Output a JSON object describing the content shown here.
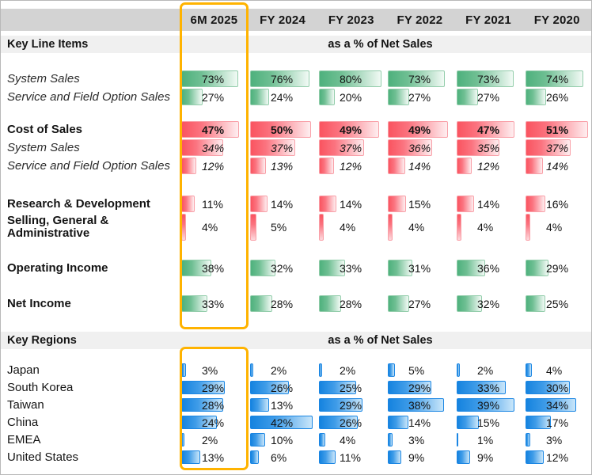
{
  "chart_data": {
    "type": "bar",
    "title": "Key Line Items and Key Regions as a % of Net Sales",
    "columns": [
      "6M 2025",
      "FY 2024",
      "FY 2023",
      "FY 2022",
      "FY 2021",
      "FY 2020"
    ],
    "highlighted_column": "6M 2025",
    "unit": "%",
    "scales": {
      "green": 80,
      "red": 51,
      "blue": 42
    },
    "sections": [
      {
        "title": "Key Line Items",
        "subtitle": "as a % of Net Sales",
        "rows": [
          {
            "label": "System Sales",
            "values": [
              73,
              76,
              80,
              73,
              73,
              74
            ],
            "color": "green",
            "label_style": "italic",
            "value_style": "normal"
          },
          {
            "label": "Service and Field Option Sales",
            "values": [
              27,
              24,
              20,
              27,
              27,
              26
            ],
            "color": "green",
            "label_style": "italic",
            "value_style": "normal"
          },
          {
            "label": "Cost of Sales",
            "values": [
              47,
              50,
              49,
              49,
              47,
              51
            ],
            "color": "red",
            "label_style": "bold",
            "value_style": "bold"
          },
          {
            "label": "System Sales",
            "values": [
              34,
              37,
              37,
              36,
              35,
              37
            ],
            "color": "red",
            "label_style": "italic",
            "value_style": "italic"
          },
          {
            "label": "Service and Field Option Sales",
            "values": [
              12,
              13,
              12,
              14,
              12,
              14
            ],
            "color": "red",
            "label_style": "italic",
            "value_style": "italic"
          },
          {
            "label": "Research & Development",
            "values": [
              11,
              14,
              14,
              15,
              14,
              16
            ],
            "color": "red",
            "label_style": "bold",
            "value_style": "normal"
          },
          {
            "label": "Selling, General & Administrative",
            "values": [
              4,
              5,
              4,
              4,
              4,
              4
            ],
            "color": "red",
            "label_style": "bold",
            "value_style": "normal",
            "tall": true
          },
          {
            "label": "Operating Income",
            "values": [
              38,
              32,
              33,
              31,
              36,
              29
            ],
            "color": "green",
            "label_style": "bold",
            "value_style": "normal"
          },
          {
            "label": "Net Income",
            "values": [
              33,
              28,
              28,
              27,
              32,
              25
            ],
            "color": "green",
            "label_style": "bold",
            "value_style": "normal"
          }
        ]
      },
      {
        "title": "Key Regions",
        "subtitle": "as a % of Net Sales",
        "rows": [
          {
            "label": "Japan",
            "values": [
              3,
              2,
              2,
              5,
              2,
              4
            ],
            "color": "blue",
            "label_style": "normal",
            "value_style": "normal"
          },
          {
            "label": "South Korea",
            "values": [
              29,
              26,
              25,
              29,
              33,
              30
            ],
            "color": "blue",
            "label_style": "normal",
            "value_style": "normal"
          },
          {
            "label": "Taiwan",
            "values": [
              28,
              13,
              29,
              38,
              39,
              34
            ],
            "color": "blue",
            "label_style": "normal",
            "value_style": "normal"
          },
          {
            "label": "China",
            "values": [
              24,
              42,
              26,
              14,
              15,
              17
            ],
            "color": "blue",
            "label_style": "normal",
            "value_style": "normal"
          },
          {
            "label": "EMEA",
            "values": [
              2,
              10,
              4,
              3,
              1,
              3
            ],
            "color": "blue",
            "label_style": "normal",
            "value_style": "normal"
          },
          {
            "label": "United States",
            "values": [
              13,
              6,
              11,
              9,
              9,
              12
            ],
            "color": "blue",
            "label_style": "normal",
            "value_style": "normal"
          }
        ]
      }
    ],
    "colors": {
      "highlight_border": "#FFB300",
      "header_bg": "#D3D3D3",
      "section_band_bg": "#F0F0F0",
      "green_bar_start": "#4EB17D",
      "green_bar_end": "#F2FAF5",
      "green_bar_border": "#93CDAB",
      "red_bar_start": "#FA5460",
      "red_bar_end": "#FEEEF0",
      "red_bar_border": "#F9A0A8",
      "blue_bar_start": "#1583DF",
      "blue_bar_end": "#C9E6FA",
      "blue_bar_border": "#1B86E3"
    }
  }
}
